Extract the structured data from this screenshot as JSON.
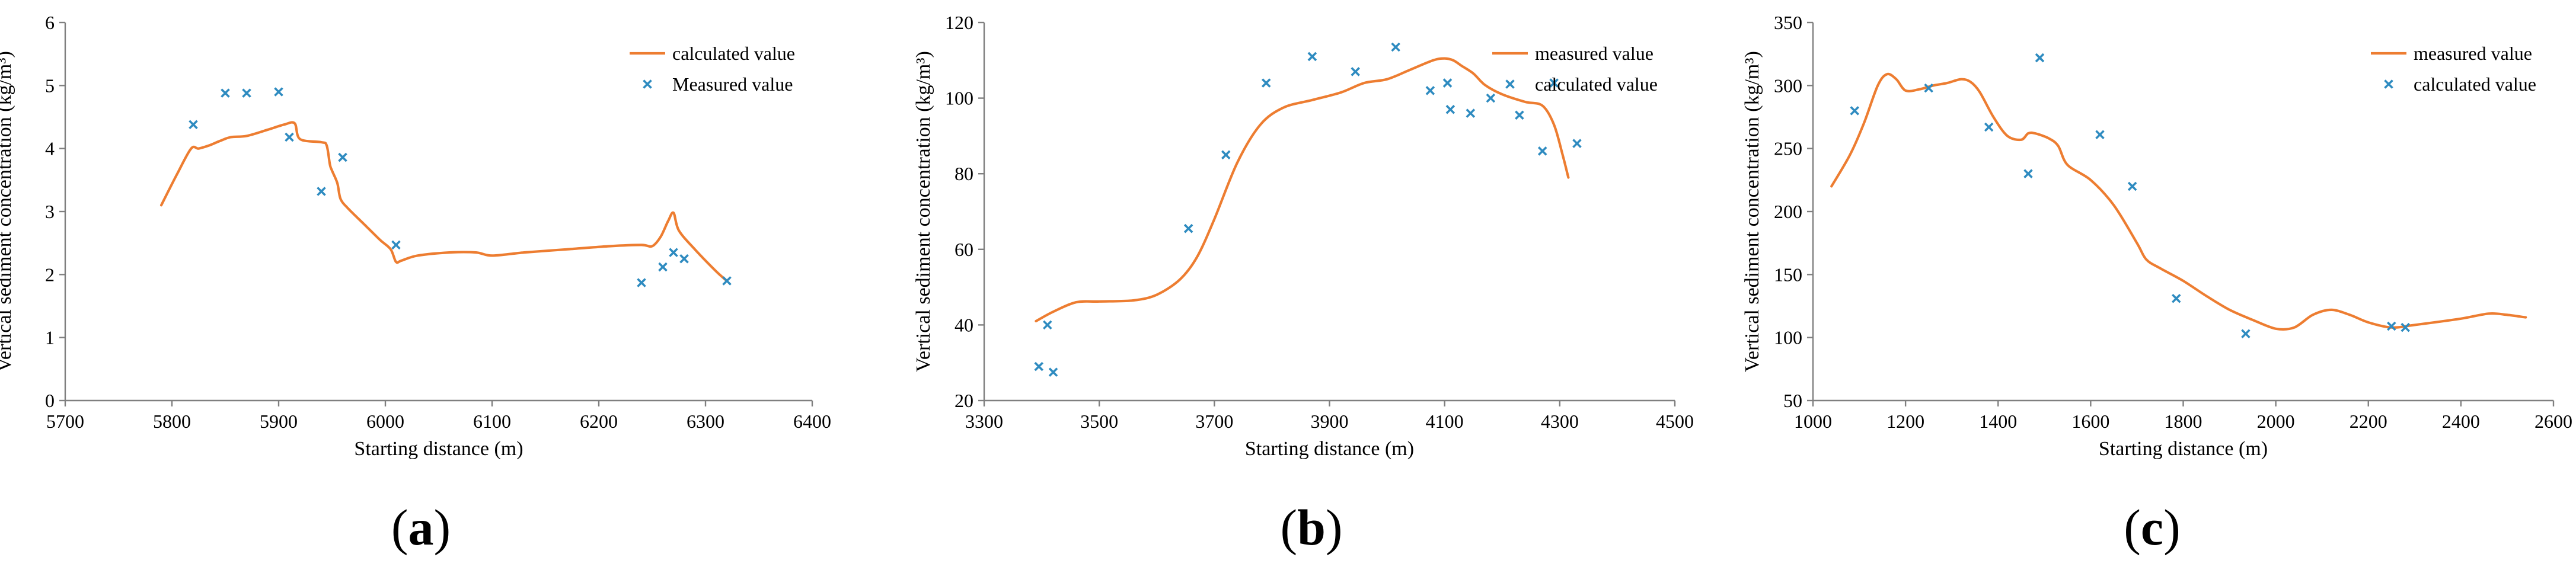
{
  "colors": {
    "line": "#ed7d31",
    "marker": "#2e8bc0",
    "axis": "#7f7f7f",
    "text": "#000000"
  },
  "chart_data": [
    {
      "type": "line+scatter",
      "panel_label": "a",
      "xlabel": "Starting distance (m)",
      "ylabel": "Vertical sediment concentration (kg/m³)",
      "xlim": [
        5700,
        6400
      ],
      "ylim": [
        0,
        6
      ],
      "xticks": [
        5700,
        5800,
        5900,
        6000,
        6100,
        6200,
        6300,
        6400
      ],
      "yticks": [
        0,
        1,
        2,
        3,
        4,
        5,
        6
      ],
      "legend": [
        "calculated value",
        "Measured value"
      ],
      "legend_position": "top-right",
      "series": [
        {
          "name": "calculated value",
          "kind": "line",
          "x": [
            5790,
            5805,
            5818,
            5825,
            5835,
            5845,
            5855,
            5870,
            5890,
            5905,
            5915,
            5920,
            5940,
            5945,
            5948,
            5950,
            5955,
            5958,
            5965,
            5980,
            5995,
            6005,
            6010,
            6015,
            6030,
            6060,
            6085,
            6100,
            6130,
            6170,
            6210,
            6240,
            6250,
            6258,
            6265,
            6270,
            6275,
            6290,
            6310,
            6320
          ],
          "y": [
            3.1,
            3.6,
            4.0,
            4.0,
            4.05,
            4.12,
            4.18,
            4.2,
            4.3,
            4.38,
            4.4,
            4.15,
            4.1,
            4.05,
            3.75,
            3.65,
            3.45,
            3.2,
            3.05,
            2.8,
            2.55,
            2.4,
            2.2,
            2.22,
            2.3,
            2.35,
            2.35,
            2.3,
            2.35,
            2.4,
            2.45,
            2.47,
            2.45,
            2.6,
            2.85,
            2.98,
            2.7,
            2.4,
            2.05,
            1.9
          ]
        },
        {
          "name": "Measured value",
          "kind": "scatter",
          "x": [
            5820,
            5850,
            5870,
            5900,
            5910,
            5940,
            5960,
            6010,
            6240,
            6260,
            6270,
            6280,
            6320
          ],
          "y": [
            4.38,
            4.88,
            4.88,
            4.9,
            4.18,
            3.32,
            3.86,
            2.47,
            1.87,
            2.12,
            2.35,
            2.25,
            1.9
          ]
        }
      ]
    },
    {
      "type": "line+scatter",
      "panel_label": "b",
      "xlabel": "Starting distance (m)",
      "ylabel": "Vertical sediment concentration (kg/m³)",
      "xlim": [
        3300,
        4500
      ],
      "ylim": [
        20,
        120
      ],
      "xticks": [
        3300,
        3500,
        3700,
        3900,
        4100,
        4300,
        4500
      ],
      "yticks": [
        20,
        40,
        60,
        80,
        100,
        120
      ],
      "legend": [
        "measured value",
        "calculated value"
      ],
      "legend_position": "top-right",
      "series": [
        {
          "name": "measured value",
          "kind": "line",
          "x": [
            3390,
            3420,
            3460,
            3500,
            3560,
            3600,
            3640,
            3670,
            3700,
            3740,
            3780,
            3820,
            3870,
            3920,
            3960,
            4000,
            4040,
            4080,
            4100,
            4115,
            4130,
            4150,
            4170,
            4200,
            4240,
            4270,
            4290,
            4305,
            4315
          ],
          "y": [
            41,
            43.5,
            46,
            46.2,
            46.5,
            48,
            52,
            58,
            68,
            83,
            93,
            97.5,
            99.5,
            101.5,
            104,
            105,
            107.5,
            110,
            110.5,
            110,
            108.5,
            106.5,
            103.5,
            101,
            99,
            98,
            93,
            85,
            79
          ]
        },
        {
          "name": "calculated value",
          "kind": "scatter",
          "x": [
            3395,
            3410,
            3420,
            3655,
            3720,
            3790,
            3870,
            3945,
            4015,
            4075,
            4105,
            4110,
            4145,
            4180,
            4230,
            4270,
            4290,
            4330
          ],
          "y": [
            29,
            40,
            27.5,
            65.5,
            85,
            104,
            111,
            107,
            113.5,
            102,
            104,
            97,
            96,
            100,
            95.5,
            86,
            104,
            88
          ]
        }
      ]
    },
    {
      "type": "line+scatter",
      "panel_label": "c",
      "xlabel": "Starting distance (m)",
      "ylabel": "Vertical sediment concentration (kg/m³)",
      "xlim": [
        1000,
        2600
      ],
      "ylim": [
        50,
        350
      ],
      "xticks": [
        1000,
        1200,
        1400,
        1600,
        1800,
        2000,
        2200,
        2400,
        2600
      ],
      "yticks": [
        50,
        100,
        150,
        200,
        250,
        300,
        350
      ],
      "legend": [
        "measured value",
        "calculated value"
      ],
      "legend_position": "top-right",
      "series": [
        {
          "name": "measured value",
          "kind": "line",
          "x": [
            1040,
            1080,
            1110,
            1140,
            1160,
            1180,
            1200,
            1230,
            1260,
            1290,
            1320,
            1340,
            1360,
            1390,
            1420,
            1450,
            1465,
            1480,
            1510,
            1530,
            1550,
            1600,
            1650,
            1700,
            1720,
            1750,
            1800,
            1850,
            1900,
            1950,
            2000,
            2040,
            2080,
            2120,
            2160,
            2200,
            2250,
            2300,
            2400,
            2460,
            2500,
            2540
          ],
          "y": [
            220,
            245,
            270,
            300,
            309,
            305,
            296,
            297,
            300,
            302,
            305,
            303,
            295,
            275,
            260,
            257,
            262,
            262,
            258,
            252,
            237,
            225,
            205,
            175,
            162,
            155,
            145,
            133,
            122,
            114,
            107,
            108,
            118,
            122,
            118,
            112,
            108,
            110,
            115,
            119,
            118,
            116
          ]
        },
        {
          "name": "calculated value",
          "kind": "scatter",
          "x": [
            1090,
            1250,
            1380,
            1465,
            1490,
            1620,
            1690,
            1785,
            1935,
            2250,
            2280
          ],
          "y": [
            280,
            298,
            267,
            230,
            322,
            261,
            220,
            131,
            103,
            109,
            108
          ]
        }
      ]
    }
  ]
}
